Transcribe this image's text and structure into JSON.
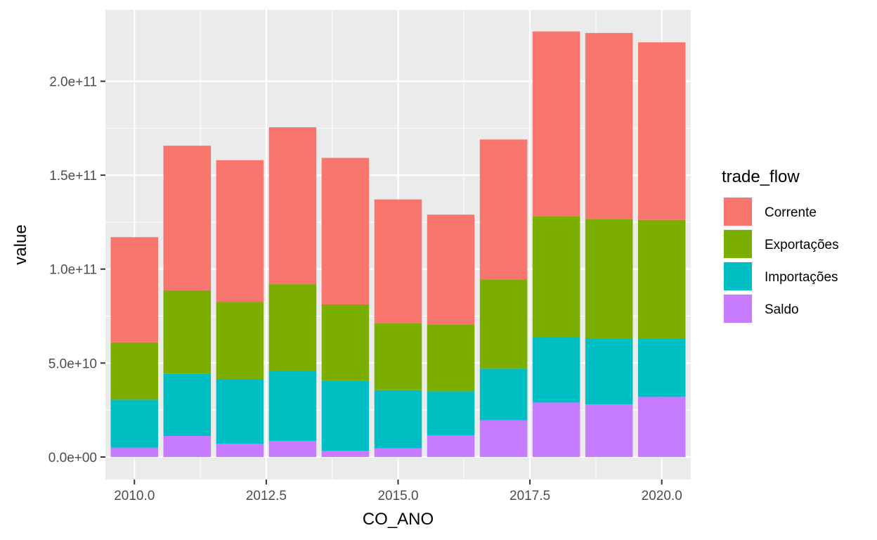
{
  "chart_data": {
    "type": "bar",
    "stacked": true,
    "xlabel": "CO_ANO",
    "ylabel": "value",
    "x": [
      2010,
      2011,
      2012,
      2013,
      2014,
      2015,
      2016,
      2017,
      2018,
      2019,
      2020
    ],
    "xlim": [
      2009.45,
      2020.55
    ],
    "ylim": [
      -12000000000.0,
      238000000000.0
    ],
    "x_ticks": [
      2010,
      2012.5,
      2015,
      2017.5,
      2020
    ],
    "x_tick_labels": [
      "2010.0",
      "2012.5",
      "2015.0",
      "2017.5",
      "2020.0"
    ],
    "y_ticks": [
      0,
      50000000000.0,
      100000000000.0,
      150000000000.0,
      200000000000.0
    ],
    "y_tick_labels": [
      "0.0e+00",
      "5.0e+10",
      "1.0e+11",
      "1.5e+11",
      "2.0e+11"
    ],
    "grid": true,
    "legend": {
      "title": "trade_flow",
      "position": "right"
    },
    "series": [
      {
        "name": "Saldo",
        "color": "#C77CFF",
        "values": [
          5000000000.0,
          11200000000.0,
          7000000000.0,
          8500000000.0,
          3200000000.0,
          4600000000.0,
          11500000000.0,
          19500000000.0,
          29000000000.0,
          28000000000.0,
          32000000000.0
        ]
      },
      {
        "name": "Importações",
        "color": "#00BFC4",
        "values": [
          25500000000.0,
          33000000000.0,
          34500000000.0,
          37500000000.0,
          37500000000.0,
          31000000000.0,
          23500000000.0,
          27500000000.0,
          35000000000.0,
          35200000000.0,
          31200000000.0
        ]
      },
      {
        "name": "Exportações",
        "color": "#7CAE00",
        "values": [
          30500000000.0,
          44500000000.0,
          41000000000.0,
          46000000000.0,
          40500000000.0,
          35500000000.0,
          35500000000.0,
          47500000000.0,
          64000000000.0,
          63500000000.0,
          63000000000.0
        ]
      },
      {
        "name": "Corrente",
        "color": "#F8766D",
        "values": [
          56000000000.0,
          77000000000.0,
          75500000000.0,
          83500000000.0,
          78000000000.0,
          66000000000.0,
          58500000000.0,
          74500000000.0,
          98500000000.0,
          99000000000.0,
          94500000000.0
        ]
      }
    ],
    "legend_order": [
      "Corrente",
      "Exportações",
      "Importações",
      "Saldo"
    ]
  }
}
